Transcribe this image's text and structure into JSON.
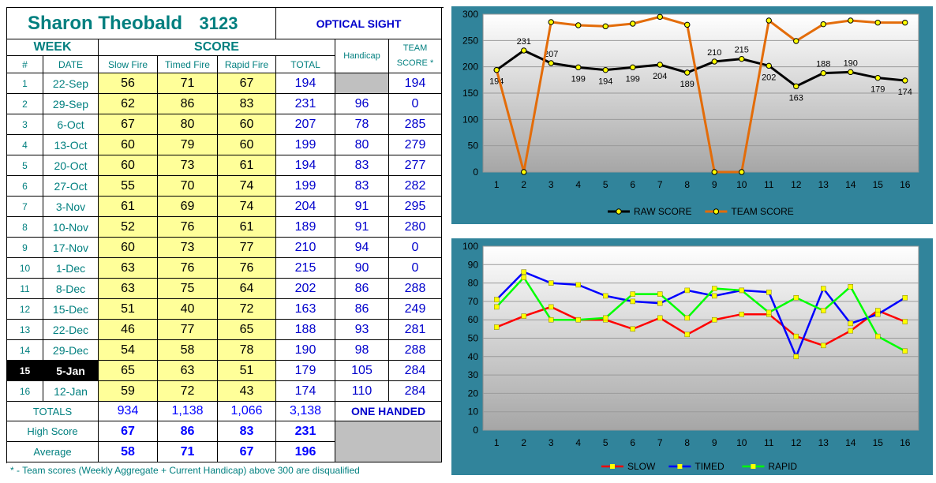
{
  "header": {
    "name": "Sharon Theobald",
    "id": "3123",
    "sight": "OPTICAL SIGHT",
    "week": "WEEK",
    "score": "SCORE",
    "team_score_1": "TEAM",
    "team_score_2": "SCORE *",
    "handicap": "Handicap",
    "col_num": "#",
    "col_date": "DATE",
    "col_slow": "Slow Fire",
    "col_timed": "Timed Fire",
    "col_rapid": "Rapid Fire",
    "col_total": "TOTAL"
  },
  "rows": [
    {
      "n": "1",
      "date": "22-Sep",
      "slow": "56",
      "timed": "71",
      "rapid": "67",
      "total": "194",
      "handicap": "",
      "team": "194"
    },
    {
      "n": "2",
      "date": "29-Sep",
      "slow": "62",
      "timed": "86",
      "rapid": "83",
      "total": "231",
      "handicap": "96",
      "team": "0"
    },
    {
      "n": "3",
      "date": "6-Oct",
      "slow": "67",
      "timed": "80",
      "rapid": "60",
      "total": "207",
      "handicap": "78",
      "team": "285"
    },
    {
      "n": "4",
      "date": "13-Oct",
      "slow": "60",
      "timed": "79",
      "rapid": "60",
      "total": "199",
      "handicap": "80",
      "team": "279"
    },
    {
      "n": "5",
      "date": "20-Oct",
      "slow": "60",
      "timed": "73",
      "rapid": "61",
      "total": "194",
      "handicap": "83",
      "team": "277"
    },
    {
      "n": "6",
      "date": "27-Oct",
      "slow": "55",
      "timed": "70",
      "rapid": "74",
      "total": "199",
      "handicap": "83",
      "team": "282"
    },
    {
      "n": "7",
      "date": "3-Nov",
      "slow": "61",
      "timed": "69",
      "rapid": "74",
      "total": "204",
      "handicap": "91",
      "team": "295"
    },
    {
      "n": "8",
      "date": "10-Nov",
      "slow": "52",
      "timed": "76",
      "rapid": "61",
      "total": "189",
      "handicap": "91",
      "team": "280"
    },
    {
      "n": "9",
      "date": "17-Nov",
      "slow": "60",
      "timed": "73",
      "rapid": "77",
      "total": "210",
      "handicap": "94",
      "team": "0"
    },
    {
      "n": "10",
      "date": "1-Dec",
      "slow": "63",
      "timed": "76",
      "rapid": "76",
      "total": "215",
      "handicap": "90",
      "team": "0"
    },
    {
      "n": "11",
      "date": "8-Dec",
      "slow": "63",
      "timed": "75",
      "rapid": "64",
      "total": "202",
      "handicap": "86",
      "team": "288"
    },
    {
      "n": "12",
      "date": "15-Dec",
      "slow": "51",
      "timed": "40",
      "rapid": "72",
      "total": "163",
      "handicap": "86",
      "team": "249"
    },
    {
      "n": "13",
      "date": "22-Dec",
      "slow": "46",
      "timed": "77",
      "rapid": "65",
      "total": "188",
      "handicap": "93",
      "team": "281"
    },
    {
      "n": "14",
      "date": "29-Dec",
      "slow": "54",
      "timed": "58",
      "rapid": "78",
      "total": "190",
      "handicap": "98",
      "team": "288"
    },
    {
      "n": "15",
      "date": "5-Jan",
      "slow": "65",
      "timed": "63",
      "rapid": "51",
      "total": "179",
      "handicap": "105",
      "team": "284"
    },
    {
      "n": "16",
      "date": "12-Jan",
      "slow": "59",
      "timed": "72",
      "rapid": "43",
      "total": "174",
      "handicap": "110",
      "team": "284"
    }
  ],
  "current_week_index": 14,
  "summary": {
    "totals_label": "TOTALS",
    "totals_slow": "934",
    "totals_timed": "1,138",
    "totals_rapid": "1,066",
    "totals_total": "3,138",
    "one_handed": "ONE HANDED",
    "high_label": "High Score",
    "high_slow": "67",
    "high_timed": "86",
    "high_rapid": "83",
    "high_total": "231",
    "avg_label": "Average",
    "avg_slow": "58",
    "avg_timed": "71",
    "avg_rapid": "67",
    "avg_total": "196"
  },
  "footnote": "* - Team scores (Weekly Aggregate + Current Handicap) above 300 are disqualified",
  "colors": {
    "teal": "#007f7f",
    "blue": "#0000cc",
    "chart_bg": "#31849b",
    "raw": "#000000",
    "team": "#e36c09",
    "slow": "#ff0000",
    "timed": "#0000ff",
    "rapid": "#00ff00",
    "marker": "#ffff00"
  },
  "chart_data": [
    {
      "type": "line",
      "x": [
        1,
        2,
        3,
        4,
        5,
        6,
        7,
        8,
        9,
        10,
        11,
        12,
        13,
        14,
        15,
        16
      ],
      "ylim": [
        0,
        300
      ],
      "yticks": [
        0,
        50,
        100,
        150,
        200,
        250,
        300
      ],
      "grid": true,
      "legend": "bottom",
      "series": [
        {
          "name": "RAW SCORE",
          "values": [
            194,
            231,
            207,
            199,
            194,
            199,
            204,
            189,
            210,
            215,
            202,
            163,
            188,
            190,
            179,
            174
          ],
          "labels": true
        },
        {
          "name": "TEAM SCORE",
          "values": [
            194,
            0,
            285,
            279,
            277,
            282,
            295,
            280,
            0,
            0,
            288,
            249,
            281,
            288,
            284,
            284
          ],
          "labels": false
        }
      ]
    },
    {
      "type": "line",
      "x": [
        1,
        2,
        3,
        4,
        5,
        6,
        7,
        8,
        9,
        10,
        11,
        12,
        13,
        14,
        15,
        16
      ],
      "ylim": [
        0,
        100
      ],
      "yticks": [
        0,
        10,
        20,
        30,
        40,
        50,
        60,
        70,
        80,
        90,
        100
      ],
      "grid": true,
      "legend": "bottom",
      "series": [
        {
          "name": "SLOW",
          "values": [
            56,
            62,
            67,
            60,
            60,
            55,
            61,
            52,
            60,
            63,
            63,
            51,
            46,
            54,
            65,
            59
          ]
        },
        {
          "name": "TIMED",
          "values": [
            71,
            86,
            80,
            79,
            73,
            70,
            69,
            76,
            73,
            76,
            75,
            40,
            77,
            58,
            63,
            72
          ]
        },
        {
          "name": "RAPID",
          "values": [
            67,
            83,
            60,
            60,
            61,
            74,
            74,
            61,
            77,
            76,
            64,
            72,
            65,
            78,
            51,
            43
          ]
        }
      ]
    }
  ]
}
